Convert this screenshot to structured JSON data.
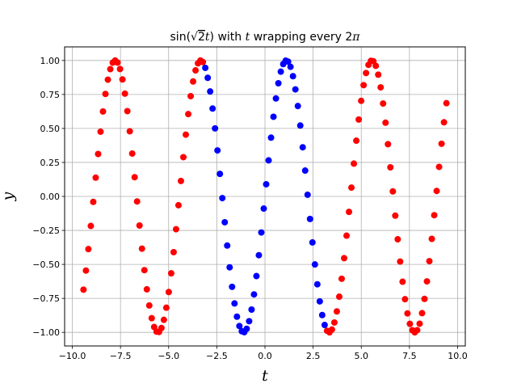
{
  "chart_data": {
    "type": "scatter",
    "title": "sin(√2 t) with t wrapping every 2π",
    "title_parts": {
      "prefix": "sin",
      "open_paren": "(",
      "sqrt_sign": "√",
      "radicand": "2",
      "var": "t",
      "close_paren": ")",
      "middle": " with ",
      "var2": "t",
      "suffix": " wrapping every 2",
      "pi": "π"
    },
    "xlabel": "t",
    "ylabel": "y",
    "xlim": [
      -10.4,
      10.4
    ],
    "ylim": [
      -1.1,
      1.1
    ],
    "xticks": [
      -10.0,
      -7.5,
      -5.0,
      -2.5,
      0.0,
      2.5,
      5.0,
      7.5,
      10.0
    ],
    "xtick_labels": [
      "−10.0",
      "−7.5",
      "−5.0",
      "−2.5",
      "0.0",
      "2.5",
      "5.0",
      "7.5",
      "10.0"
    ],
    "yticks": [
      -1.0,
      -0.75,
      -0.5,
      -0.25,
      0.0,
      0.25,
      0.5,
      0.75,
      1.0
    ],
    "ytick_labels": [
      "−1.00",
      "−0.75",
      "−0.50",
      "−0.25",
      "0.00",
      "0.25",
      "0.50",
      "0.75",
      "1.00"
    ],
    "grid": true,
    "function": "sin(sqrt(2)*t)",
    "t_range": [
      -9.42,
      9.42
    ],
    "point_count": 150,
    "series": [
      {
        "color": "#ff0000",
        "t_range": [
          -9.42,
          -3.14
        ]
      },
      {
        "color": "#0000ff",
        "t_range": [
          -3.14,
          3.14
        ]
      },
      {
        "color": "#ff0000",
        "t_range": [
          3.14,
          9.42
        ]
      }
    ]
  }
}
